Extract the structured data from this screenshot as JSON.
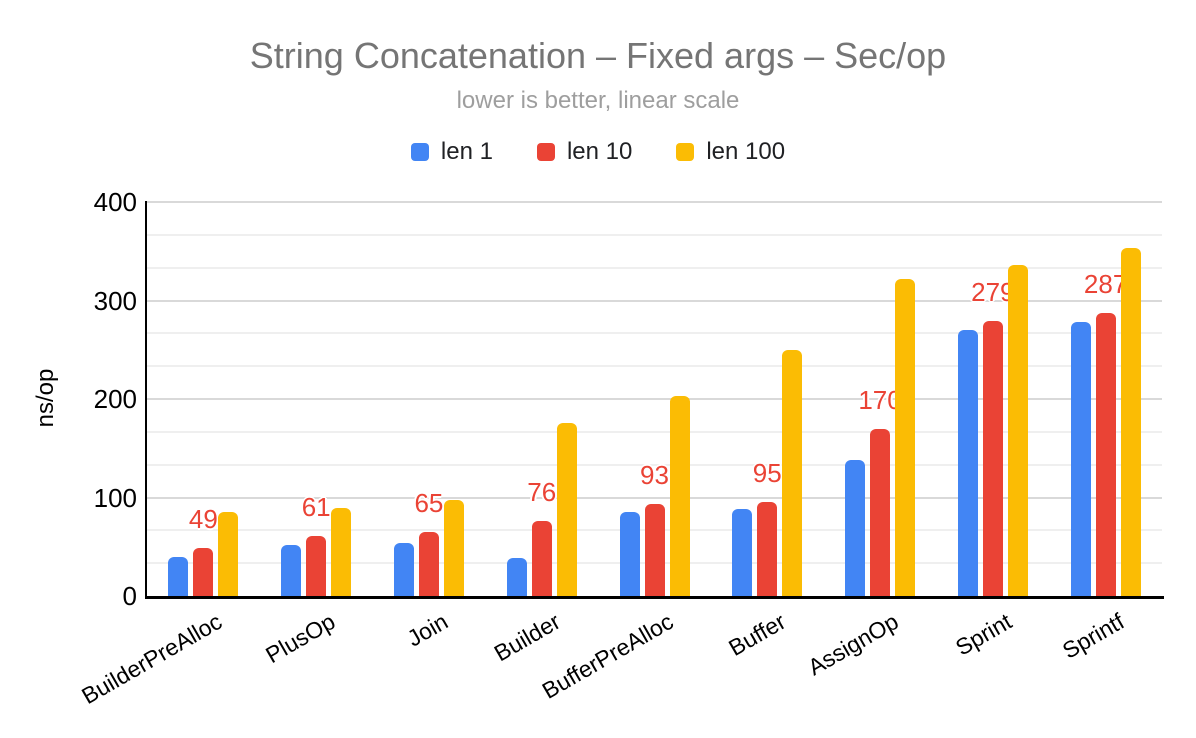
{
  "chart_data": {
    "type": "bar",
    "title": "String Concatenation – Fixed args – Sec/op",
    "subtitle": "lower is better, linear scale",
    "categories": [
      "BuilderPreAlloc",
      "PlusOp",
      "Join",
      "Builder",
      "BufferPreAlloc",
      "Buffer",
      "AssignOp",
      "Sprint",
      "Sprintf"
    ],
    "series": [
      {
        "name": "len 1",
        "color": "#4285F4",
        "labels_shown": false,
        "values": [
          40,
          52,
          54,
          39,
          85,
          88,
          138,
          270,
          278
        ]
      },
      {
        "name": "len 10",
        "color": "#EA4335",
        "labels_shown": true,
        "values": [
          49,
          61,
          65,
          76,
          93,
          95,
          170,
          279,
          287
        ]
      },
      {
        "name": "len 100",
        "color": "#FBBC04",
        "labels_shown": false,
        "values": [
          85,
          89,
          97,
          176,
          203,
          250,
          322,
          336,
          353
        ]
      }
    ],
    "xlabel": "",
    "ylabel": "ns/op",
    "ylim": [
      0,
      400
    ],
    "yticks": [
      0,
      100,
      200,
      300,
      400
    ],
    "minor_gridlines_per_major": 2,
    "grid": true,
    "legend_position": "top",
    "data_labels_series": "len 10",
    "data_label_color": "#EA4335"
  },
  "colors": {
    "background": "#FFFFFF",
    "title_text": "#757575",
    "subtitle_text": "#9E9E9E",
    "legend_text": "#202124",
    "axis_text": "#000000",
    "category_text": "#000000",
    "axis_line": "#000000",
    "major_gridline": "#D9D9D9",
    "minor_gridline": "#EFEFEF",
    "series_len_1": "#4285F4",
    "series_len_10": "#EA4335",
    "series_len_100": "#FBBC04",
    "data_label": "#EA4335"
  }
}
